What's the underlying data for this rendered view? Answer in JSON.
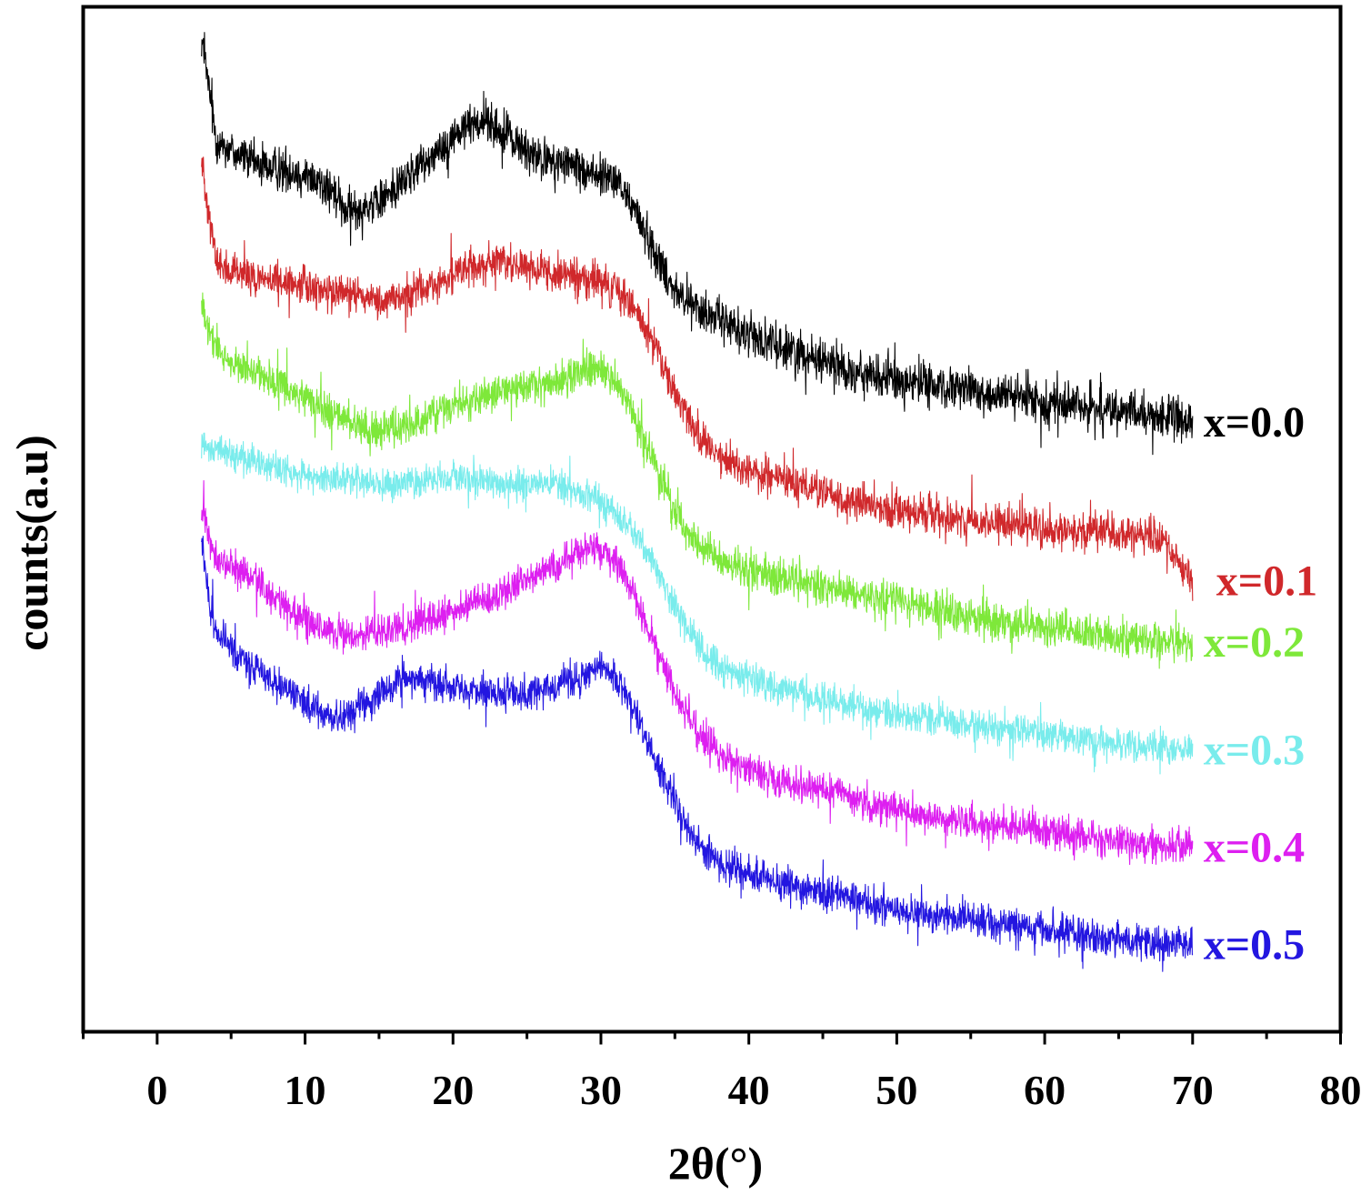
{
  "chart_data": {
    "type": "line",
    "title": "",
    "xlabel": "2θ(°)",
    "ylabel": "counts(a.u)",
    "xlim": [
      -5,
      80
    ],
    "xticks": [
      0,
      10,
      20,
      30,
      40,
      50,
      60,
      70,
      80
    ],
    "ylim": [
      0,
      100
    ],
    "y_ticks_shown": false,
    "grid": false,
    "legend": "inline labels at right end of each curve",
    "series": [
      {
        "name": "x=0.0",
        "color": "#000000",
        "x": [
          3,
          3.5,
          4,
          5,
          7,
          9,
          11,
          13,
          15,
          17,
          19,
          21,
          22,
          24,
          26,
          28,
          30,
          31,
          32,
          33,
          34,
          35,
          36,
          38,
          40,
          42,
          45,
          48,
          50,
          55,
          60,
          65,
          70
        ],
        "y": [
          97,
          92,
          87,
          86,
          84.5,
          84,
          83,
          80,
          81,
          83.5,
          86,
          88.5,
          89,
          87,
          85,
          84.5,
          83.5,
          83,
          81,
          78,
          75,
          72.5,
          71,
          69.5,
          68,
          67,
          65.5,
          64,
          63.5,
          62.5,
          61.5,
          60.5,
          59.5
        ],
        "noise": 3.0
      },
      {
        "name": "x=0.1",
        "color": "#d0282b",
        "x": [
          3,
          3.5,
          4,
          5,
          7,
          9,
          11,
          13,
          15,
          17,
          19,
          21,
          23,
          25,
          27,
          29,
          31,
          32,
          33,
          34,
          35,
          36,
          37,
          38,
          40,
          42,
          45,
          48,
          50,
          55,
          60,
          65,
          68,
          70
        ],
        "y": [
          85,
          80,
          75,
          74,
          73.5,
          73,
          72.5,
          72,
          71.5,
          72,
          73,
          74.5,
          75,
          74.5,
          74,
          73.5,
          72.5,
          71,
          68.5,
          65.5,
          62.5,
          59.5,
          57.5,
          56,
          55,
          54,
          52.5,
          51.5,
          51,
          50,
          49,
          48.5,
          48,
          44
        ],
        "noise": 2.6
      },
      {
        "name": "x=0.2",
        "color": "#7ee83a",
        "x": [
          3,
          3.5,
          4,
          5,
          7,
          9,
          11,
          13,
          15,
          17,
          19,
          21,
          23,
          25,
          27,
          29,
          30,
          31,
          32,
          33,
          34,
          35,
          36,
          37,
          38,
          40,
          42,
          45,
          48,
          50,
          55,
          60,
          65,
          70
        ],
        "y": [
          71,
          68,
          66.5,
          65.5,
          64,
          62.5,
          61,
          59.5,
          58.5,
          59,
          60.5,
          61.5,
          62.5,
          63,
          63.5,
          64.5,
          64.5,
          63.5,
          61,
          57.5,
          54,
          51,
          48.5,
          47,
          46,
          45,
          44.5,
          43.5,
          42.5,
          42,
          40.5,
          39.5,
          38.5,
          38
        ],
        "noise": 2.6
      },
      {
        "name": "x=0.3",
        "color": "#79ecec",
        "x": [
          3,
          3.5,
          4,
          5,
          7,
          9,
          11,
          13,
          15,
          17,
          19,
          21,
          23,
          25,
          27,
          28,
          29,
          30,
          31,
          32,
          33,
          34,
          35,
          36,
          37,
          38,
          40,
          42,
          45,
          48,
          50,
          55,
          60,
          65,
          70
        ],
        "y": [
          58,
          57,
          57,
          56.5,
          55.5,
          54.5,
          54,
          54,
          53.5,
          53.5,
          54,
          54,
          53.5,
          53.5,
          53.5,
          53,
          52.5,
          51.5,
          50.5,
          49,
          47,
          44.5,
          41.5,
          39,
          37,
          35.5,
          34.5,
          33.5,
          32.5,
          31.5,
          31,
          30,
          29,
          28,
          27.5
        ],
        "noise": 2.2
      },
      {
        "name": "x=0.4",
        "color": "#dd1ff0",
        "x": [
          3,
          3.5,
          4,
          5,
          7,
          9,
          11,
          13,
          15,
          17,
          19,
          21,
          23,
          25,
          27,
          29,
          30,
          31,
          32,
          33,
          34,
          35,
          36,
          37,
          38,
          40,
          42,
          45,
          48,
          50,
          55,
          60,
          65,
          70
        ],
        "y": [
          51,
          48,
          46,
          45.5,
          43.5,
          41,
          39.5,
          38.5,
          39,
          39.5,
          40.5,
          41.5,
          42.5,
          44,
          45.5,
          47,
          47,
          46,
          43.5,
          40,
          36.5,
          33,
          30.5,
          28.5,
          27,
          25.5,
          24.5,
          23.5,
          22.5,
          21.5,
          20.5,
          19.5,
          18.5,
          18
        ],
        "noise": 2.4
      },
      {
        "name": "x=0.5",
        "color": "#2316e0",
        "x": [
          3,
          3.5,
          4,
          5,
          7,
          9,
          11,
          12,
          13,
          15,
          17,
          19,
          21,
          23,
          25,
          27,
          29,
          30,
          31,
          32,
          33,
          34,
          35,
          36,
          37,
          38,
          40,
          42,
          45,
          48,
          50,
          55,
          60,
          65,
          70
        ],
        "y": [
          48,
          42,
          39,
          37.5,
          35,
          33,
          31.5,
          30.5,
          31,
          33,
          34.5,
          34,
          33.5,
          33,
          33,
          33.5,
          35,
          35.5,
          34.5,
          32,
          29,
          25.5,
          22.5,
          19.5,
          17.5,
          16.5,
          15.5,
          14.5,
          13.5,
          12.5,
          12,
          11,
          10,
          9,
          8.5
        ],
        "noise": 2.4
      }
    ],
    "labels": [
      {
        "text": "x=0.0",
        "color": "#000000"
      },
      {
        "text": "x=0.1",
        "color": "#d0282b"
      },
      {
        "text": "x=0.2",
        "color": "#7ee83a"
      },
      {
        "text": "x=0.3",
        "color": "#79ecec"
      },
      {
        "text": "x=0.4",
        "color": "#dd1ff0"
      },
      {
        "text": "x=0.5",
        "color": "#2316e0"
      }
    ]
  }
}
